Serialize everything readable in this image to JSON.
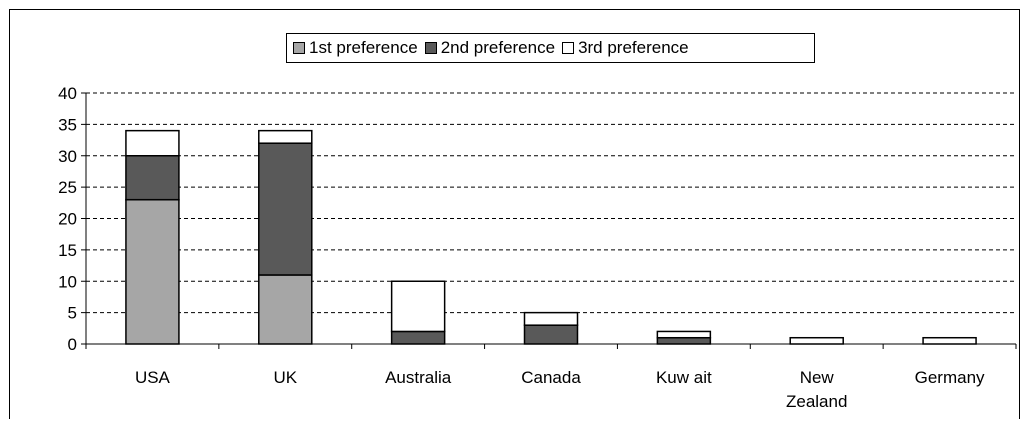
{
  "chart_data": {
    "type": "bar",
    "stacked": true,
    "categories": [
      "USA",
      "UK",
      "Australia",
      "Canada",
      "Kuw ait",
      "New Zealand",
      "Germany"
    ],
    "category_lines": [
      [
        "USA"
      ],
      [
        "UK"
      ],
      [
        "Australia"
      ],
      [
        "Canada"
      ],
      [
        "Kuw ait"
      ],
      [
        "New",
        "Zealand"
      ],
      [
        "Germany"
      ]
    ],
    "series": [
      {
        "name": "1st preference",
        "color": "#a6a6a6",
        "values": [
          23,
          11,
          0,
          0,
          0,
          0,
          0
        ]
      },
      {
        "name": "2nd preference",
        "color": "#595959",
        "values": [
          7,
          21,
          2,
          3,
          1,
          0,
          0
        ]
      },
      {
        "name": "3rd preference",
        "color": "#ffffff",
        "values": [
          4,
          2,
          8,
          2,
          1,
          1,
          1
        ]
      }
    ],
    "ylim": [
      0,
      40
    ],
    "yticks": [
      0,
      5,
      10,
      15,
      20,
      25,
      30,
      35,
      40
    ],
    "grid": "dashed horizontal",
    "legend_position": "top"
  }
}
